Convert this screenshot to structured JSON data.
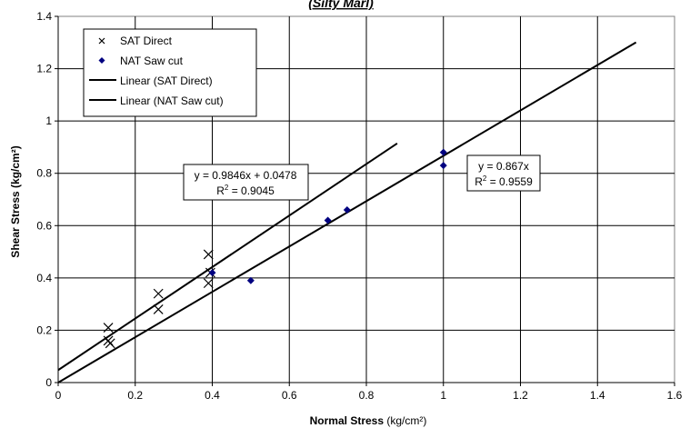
{
  "chart_data": {
    "type": "scatter",
    "title": "(Silty Marl)",
    "xlabel_bold": "Normal Stress",
    "xlabel_unit": " (kg/cm²)",
    "ylabel": "Shear Stress (kg/cm²)",
    "xlim": [
      0,
      1.6
    ],
    "ylim": [
      0,
      1.4
    ],
    "xticks": [
      0,
      0.2,
      0.4,
      0.6,
      0.8,
      1,
      1.2,
      1.4,
      1.6
    ],
    "xtick_labels": [
      "0",
      "0.2",
      "0.4",
      "0.6",
      "0.8",
      "1",
      "1.2",
      "1.4",
      "1.6"
    ],
    "yticks": [
      0,
      0.2,
      0.4,
      0.6,
      0.8,
      1,
      1.2,
      1.4
    ],
    "ytick_labels": [
      "0",
      "0.2",
      "0.4",
      "0.6",
      "0.8",
      "1",
      "1.2",
      "1.4"
    ],
    "grid": true,
    "legend_position": "top-left",
    "series": [
      {
        "name": "SAT Direct",
        "marker": "x",
        "color": "#000000",
        "points": [
          {
            "x": 0.13,
            "y": 0.21
          },
          {
            "x": 0.13,
            "y": 0.16
          },
          {
            "x": 0.135,
            "y": 0.15
          },
          {
            "x": 0.26,
            "y": 0.34
          },
          {
            "x": 0.26,
            "y": 0.28
          },
          {
            "x": 0.39,
            "y": 0.49
          },
          {
            "x": 0.39,
            "y": 0.38
          },
          {
            "x": 0.395,
            "y": 0.42
          }
        ]
      },
      {
        "name": "NAT Saw cut",
        "marker": "diamond",
        "color": "#000080",
        "points": [
          {
            "x": 0.4,
            "y": 0.42
          },
          {
            "x": 0.5,
            "y": 0.39
          },
          {
            "x": 0.7,
            "y": 0.62
          },
          {
            "x": 0.75,
            "y": 0.66
          },
          {
            "x": 1.0,
            "y": 0.88
          },
          {
            "x": 1.0,
            "y": 0.83
          }
        ]
      }
    ],
    "trendlines": [
      {
        "name": "Linear (SAT Direct)",
        "slope": 0.9846,
        "intercept": 0.0478,
        "x_start": 0,
        "x_end": 0.88,
        "color": "#000000",
        "equation": "y = 0.9846x + 0.0478",
        "r2_value": " = 0.9045"
      },
      {
        "name": "Linear (NAT Saw cut)",
        "slope": 0.867,
        "intercept": 0,
        "x_start": 0,
        "x_end": 1.5,
        "color": "#000000",
        "equation": "y = 0.867x",
        "r2_value": " = 0.9559"
      }
    ]
  }
}
